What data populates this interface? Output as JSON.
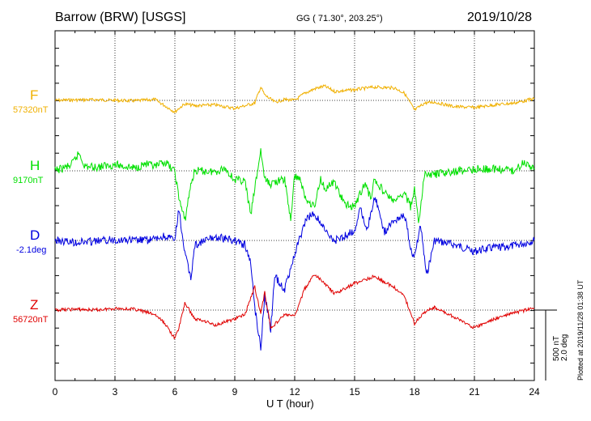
{
  "header": {
    "station": "Barrow (BRW)  [USGS]",
    "coords": "GG ( 71.30°, 203.25°)",
    "date": "2019/10/28"
  },
  "side_note": "Plotted at 2019/11/28 01:38 UT",
  "scale_bar": {
    "line1": "500 nT",
    "line2": "2.0 deg"
  },
  "colors": {
    "F": "#f0b000",
    "H": "#00e000",
    "D": "#0000e0",
    "Z": "#e00000"
  },
  "chart_data": {
    "type": "line",
    "title": "",
    "xlabel": "U T (hour)",
    "xlim": [
      0,
      24
    ],
    "xticks": [
      "0",
      "3",
      "6",
      "9",
      "12",
      "15",
      "18",
      "21",
      "24"
    ],
    "grid": true,
    "series": [
      {
        "name": "F",
        "baseline_label": "57320nT",
        "x": [
          0,
          1,
          2,
          3,
          4,
          5,
          5.5,
          6,
          6.2,
          6.5,
          7,
          8,
          9,
          9.5,
          10,
          10.3,
          10.5,
          11,
          11.5,
          12,
          12.5,
          13,
          13.5,
          14,
          15,
          16,
          17,
          17.5,
          18,
          18.5,
          19,
          20,
          21,
          22,
          23,
          24
        ],
        "y": [
          0,
          5,
          8,
          0,
          -5,
          10,
          -60,
          -130,
          -90,
          -40,
          -60,
          -50,
          -90,
          -60,
          -30,
          150,
          60,
          -20,
          10,
          0,
          80,
          130,
          160,
          100,
          120,
          150,
          140,
          80,
          -110,
          -30,
          -20,
          -70,
          -80,
          -50,
          -30,
          20
        ]
      },
      {
        "name": "H",
        "baseline_label": "9170nT",
        "x": [
          0,
          0.8,
          1.2,
          1.5,
          2,
          3,
          4,
          4.5,
          5,
          5.5,
          6,
          6.2,
          6.5,
          6.8,
          7,
          8,
          8.5,
          9,
          9.5,
          9.8,
          10,
          10.3,
          10.5,
          10.8,
          11,
          11.5,
          11.8,
          12,
          12.3,
          12.5,
          13,
          13.3,
          13.5,
          14,
          14.5,
          15,
          15.5,
          15.8,
          16,
          16.5,
          17,
          17.5,
          17.8,
          18,
          18.2,
          18.5,
          19,
          20,
          21,
          22,
          23,
          23.5,
          24
        ],
        "y": [
          0,
          60,
          200,
          50,
          40,
          70,
          30,
          80,
          40,
          100,
          -10,
          -300,
          -560,
          -150,
          0,
          -10,
          30,
          -100,
          -110,
          -500,
          -200,
          230,
          -100,
          -150,
          -120,
          -100,
          -550,
          -50,
          -100,
          -300,
          -400,
          -80,
          -200,
          -130,
          -380,
          -400,
          -140,
          -300,
          -100,
          -240,
          -350,
          -250,
          -400,
          -200,
          -600,
          -40,
          -40,
          -10,
          20,
          20,
          0,
          100,
          30
        ]
      },
      {
        "name": "D",
        "baseline_label": "-2.1deg",
        "x": [
          0,
          1,
          2,
          3,
          4,
          5,
          5.5,
          6,
          6.2,
          6.5,
          6.8,
          7,
          8,
          9,
          9.5,
          9.8,
          10,
          10.3,
          10.5,
          10.8,
          11,
          11.5,
          12,
          12.3,
          12.6,
          13,
          13.3,
          13.6,
          14,
          14.5,
          15,
          15.3,
          15.6,
          16,
          16.5,
          17,
          17.5,
          17.8,
          18,
          18.3,
          18.6,
          19,
          20,
          21,
          22,
          23,
          24
        ],
        "y": [
          0,
          -20,
          -10,
          10,
          0,
          10,
          50,
          0,
          350,
          -150,
          -420,
          -50,
          40,
          0,
          -50,
          -250,
          -750,
          -1200,
          -600,
          -1000,
          -400,
          -550,
          -150,
          50,
          250,
          300,
          200,
          80,
          0,
          50,
          120,
          380,
          80,
          500,
          100,
          230,
          300,
          -80,
          -200,
          180,
          -400,
          0,
          -50,
          -120,
          -80,
          -60,
          0
        ]
      },
      {
        "name": "Z",
        "baseline_label": "56720nT",
        "x": [
          0,
          1,
          2,
          3,
          4,
          5,
          5.5,
          6,
          6.2,
          6.5,
          7,
          7.5,
          8,
          9,
          9.5,
          10,
          10.3,
          10.5,
          10.8,
          11,
          11.5,
          12,
          12.5,
          13,
          13.5,
          14,
          15,
          16,
          17,
          17.5,
          18,
          18.5,
          19,
          20,
          21,
          22,
          23,
          24
        ],
        "y": [
          0,
          10,
          0,
          20,
          10,
          -50,
          -150,
          -320,
          -200,
          80,
          -100,
          -120,
          -170,
          -100,
          -50,
          260,
          -40,
          200,
          -200,
          -160,
          -50,
          -70,
          240,
          400,
          300,
          180,
          300,
          380,
          250,
          150,
          -150,
          -20,
          30,
          -80,
          -200,
          -100,
          -30,
          20
        ]
      }
    ]
  }
}
